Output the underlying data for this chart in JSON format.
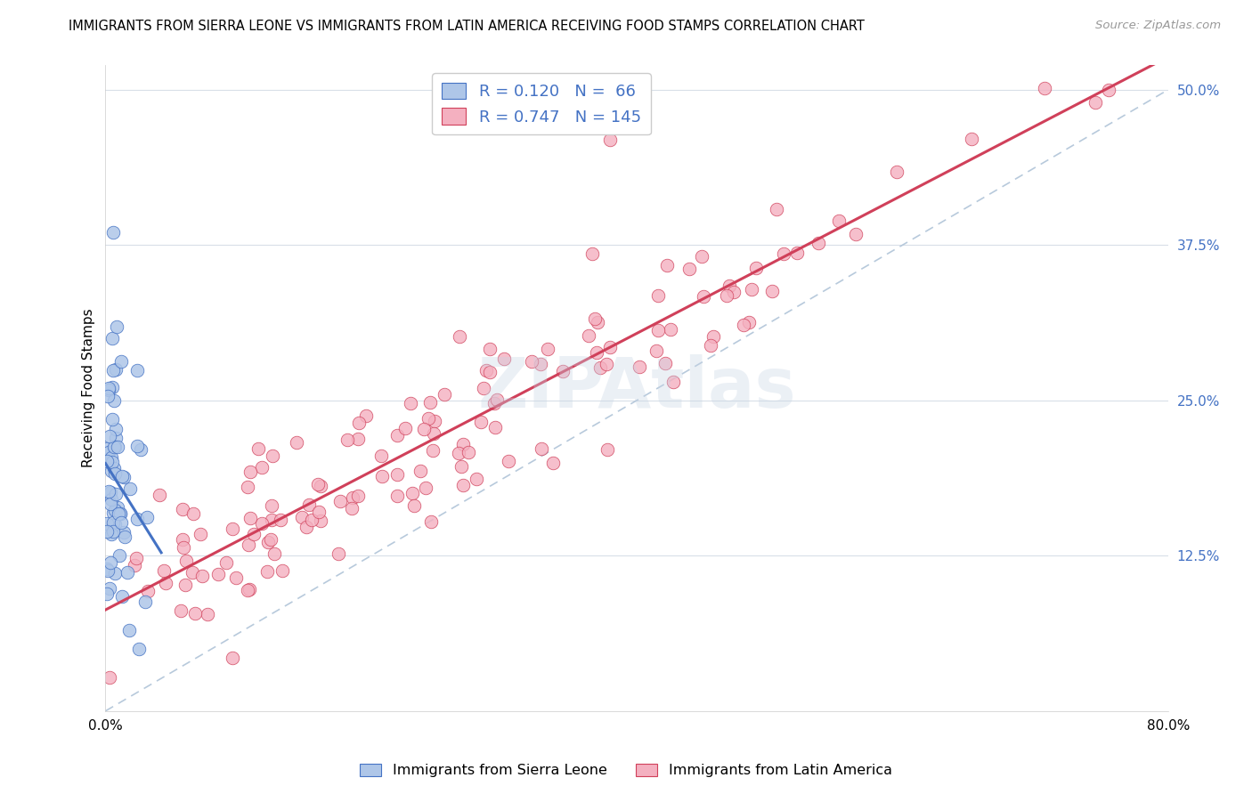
{
  "title": "IMMIGRANTS FROM SIERRA LEONE VS IMMIGRANTS FROM LATIN AMERICA RECEIVING FOOD STAMPS CORRELATION CHART",
  "source": "Source: ZipAtlas.com",
  "ylabel": "Receiving Food Stamps",
  "xmin": 0.0,
  "xmax": 0.8,
  "ymin": 0.0,
  "ymax": 0.52,
  "legend1_label": "Immigrants from Sierra Leone",
  "legend2_label": "Immigrants from Latin America",
  "R1": "0.120",
  "N1": "66",
  "R2": "0.747",
  "N2": "145",
  "color_sierra": "#aec6e8",
  "color_latin": "#f4b0c0",
  "color_trend_sierra": "#4472c4",
  "color_trend_latin": "#d0405a",
  "color_diag": "#b0c4d8",
  "watermark": "ZIPAtlas"
}
